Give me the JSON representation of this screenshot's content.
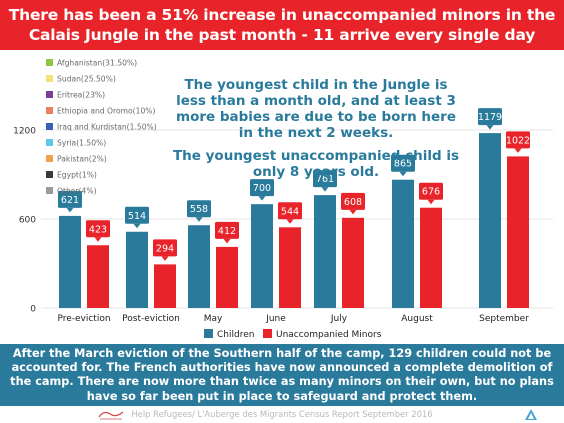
{
  "title": {
    "line1": "There has been a 51% increase in unaccompanied minors in the",
    "line2": "Calais Jungle in the past month - 11 arrive every single day"
  },
  "colors": {
    "banner_red": "#e8242a",
    "footer_blue": "#2a7a9c",
    "children": "#2a7a9c",
    "minors": "#e8242a",
    "callout_text": "#2a7a9c"
  },
  "nationality_legend": [
    {
      "label": "Afghanistan(31.50%)",
      "color": "#8ec640"
    },
    {
      "label": "Sudan(25.50%)",
      "color": "#f3e17a"
    },
    {
      "label": "Eritrea(23%)",
      "color": "#7b3f9a"
    },
    {
      "label": "Ethiopia and Oromo(10%)",
      "color": "#ef7e60"
    },
    {
      "label": "Iraq and Kurdistan(1.50%)",
      "color": "#3a5fb8"
    },
    {
      "label": "Syria(1.50%)",
      "color": "#5fc8ea"
    },
    {
      "label": "Pakistan(2%)",
      "color": "#f3a04a"
    },
    {
      "label": "Egypt(1%)",
      "color": "#3a3a3a"
    },
    {
      "label": "Other(4%)",
      "color": "#9a9a9a"
    }
  ],
  "callouts": {
    "line1": "The youngest child in the Jungle is",
    "line2": "less than a month old, and at least 3",
    "line3": "more babies are due to be born here",
    "line4": "in the next 2 weeks.",
    "line5": "The youngest unaccompanied child is",
    "line6": "only 8 years old."
  },
  "chart_data": {
    "type": "bar",
    "categories": [
      "Pre-eviction",
      "Post-eviction",
      "May",
      "June",
      "July",
      "August",
      "September"
    ],
    "series": [
      {
        "name": "Children",
        "values": [
          621,
          514,
          558,
          700,
          761,
          865,
          1179
        ],
        "color": "#2a7a9c"
      },
      {
        "name": "Unaccompanied Minors",
        "values": [
          423,
          294,
          412,
          544,
          608,
          676,
          1022
        ],
        "color": "#e8242a"
      }
    ],
    "yticks": [
      "0",
      "600",
      "1200"
    ],
    "ylim": [
      0,
      1350
    ],
    "grid": true,
    "legend_position": "bottom"
  },
  "footer": {
    "line1": "After the March eviction of the Southern half of the camp, 129 children could not be",
    "line2": "accounted for. The French authorities have now announced a complete demolition of",
    "line3": "the camp. There are now more than twice as many minors on their own, but no plans",
    "line4": "have so far been put in place to safeguard and protect them."
  },
  "credit": "Help Refugees/ L'Auberge des Migrants Census Report September 2016"
}
